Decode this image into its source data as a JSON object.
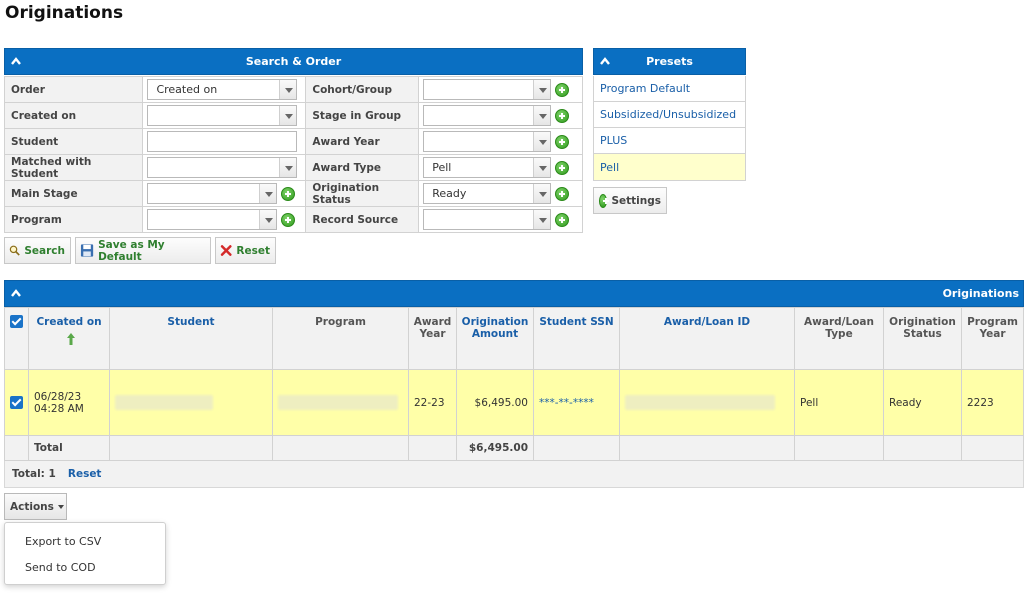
{
  "page": {
    "title": "Originations"
  },
  "search": {
    "header": "Search & Order",
    "rows": [
      {
        "left_label": "Order",
        "left_value": "Created on",
        "right_label": "Cohort/Group",
        "right_value": ""
      },
      {
        "left_label": "Created on",
        "left_value": "",
        "right_label": "Stage in Group",
        "right_value": ""
      },
      {
        "left_label": "Student",
        "left_value": "",
        "right_label": "Award Year",
        "right_value": ""
      },
      {
        "left_label": "Matched with Student",
        "left_value": "",
        "right_label": "Award Type",
        "right_value": "Pell"
      },
      {
        "left_label": "Main Stage",
        "left_value": "",
        "right_label": "Origination Status",
        "right_value": "Ready"
      },
      {
        "left_label": "Program",
        "left_value": "",
        "right_label": "Record Source",
        "right_value": ""
      }
    ],
    "buttons": {
      "search": "Search",
      "save_default": "Save as My Default",
      "reset": "Reset"
    }
  },
  "presets": {
    "header": "Presets",
    "items": [
      "Program Default",
      "Subsidized/Unsubsidized",
      "PLUS",
      "Pell"
    ],
    "active": "Pell",
    "settings_label": "Settings"
  },
  "originations": {
    "header": "Originations",
    "columns": [
      "Created on",
      "Student",
      "Program",
      "Award Year",
      "Origination Amount",
      "Student SSN",
      "Award/Loan ID",
      "Award/Loan Type",
      "Origination Status",
      "Program Year"
    ],
    "rows": [
      {
        "created_date": "06/28/23",
        "created_time": "04:28 AM",
        "award_year": "22-23",
        "amount": "$6,495.00",
        "ssn": "***-**-****",
        "type": "Pell",
        "status": "Ready",
        "program_year": "2223"
      }
    ],
    "total_label": "Total",
    "total_amount": "$6,495.00",
    "footer": {
      "total_count": "Total: 1",
      "reset": "Reset"
    }
  },
  "actions": {
    "label": "Actions",
    "menu": [
      "Export to CSV",
      "Send to COD"
    ]
  },
  "colors": {
    "header_blue": "#0a6fc2",
    "highlight_yellow": "#ffffa8",
    "link_blue": "#1a5fa8"
  }
}
